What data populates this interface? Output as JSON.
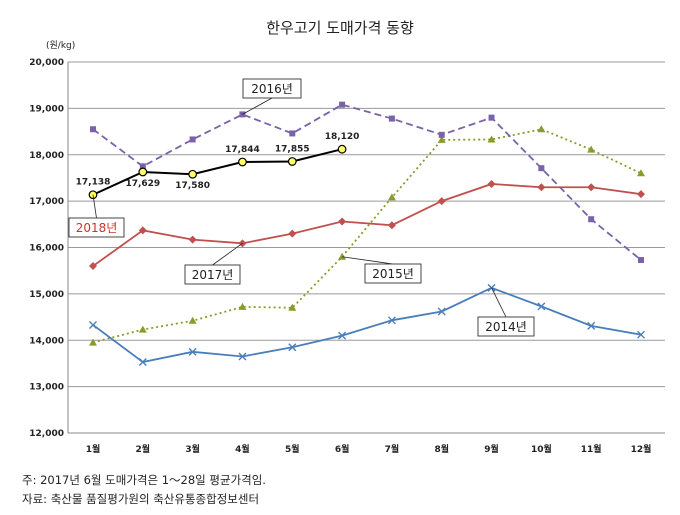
{
  "chart_data": {
    "type": "line",
    "title": "한우고기 도매가격 동향",
    "unit_label": "(원/kg)",
    "categories": [
      "1월",
      "2월",
      "3월",
      "4월",
      "5월",
      "6월",
      "7월",
      "8월",
      "9월",
      "10월",
      "11월",
      "12월"
    ],
    "ylim": [
      12000,
      20000
    ],
    "yticks": [
      "12,000",
      "13,000",
      "14,000",
      "15,000",
      "16,000",
      "17,000",
      "18,000",
      "19,000",
      "20,000"
    ],
    "grid": true,
    "series": [
      {
        "name": "2014년",
        "color": "#4a7ebb",
        "style": "solid",
        "marker": "x",
        "values": [
          14330,
          13530,
          13750,
          13650,
          13850,
          14100,
          14430,
          14620,
          15130,
          14730,
          14310,
          14120
        ]
      },
      {
        "name": "2015년",
        "color": "#8a9a2b",
        "style": "dotted",
        "marker": "triangle",
        "values": [
          13950,
          14230,
          14420,
          14720,
          14700,
          15800,
          17080,
          18320,
          18330,
          18550,
          18110,
          17600
        ]
      },
      {
        "name": "2016년",
        "color": "#7a62a8",
        "style": "dashed",
        "marker": "square",
        "values": [
          18550,
          17750,
          18330,
          18870,
          18460,
          19080,
          18780,
          18430,
          18800,
          17710,
          16610,
          15730
        ]
      },
      {
        "name": "2017년",
        "color": "#c0504d",
        "style": "solid",
        "marker": "diamond",
        "values": [
          15600,
          16370,
          16170,
          16090,
          16300,
          16560,
          16480,
          17000,
          17370,
          17300,
          17300,
          17150
        ]
      },
      {
        "name": "2018년",
        "color": "#000000",
        "style": "solid",
        "marker": "circle",
        "values": [
          17138,
          17629,
          17580,
          17844,
          17855,
          18120,
          null,
          null,
          null,
          null,
          null,
          null
        ],
        "labels": [
          "17,138",
          "17,629",
          "17,580",
          "17,844",
          "17,855",
          "18,120"
        ]
      }
    ],
    "annotations": [
      "2016년",
      "2018년",
      "2017년",
      "2015년",
      "2014년"
    ]
  },
  "footnotes": {
    "note": "주:  2017년  6월  도매가격은  1～28일  평균가격임.",
    "source": "자료:  축산물  품질평가원의  축산유통종합정보센터"
  }
}
